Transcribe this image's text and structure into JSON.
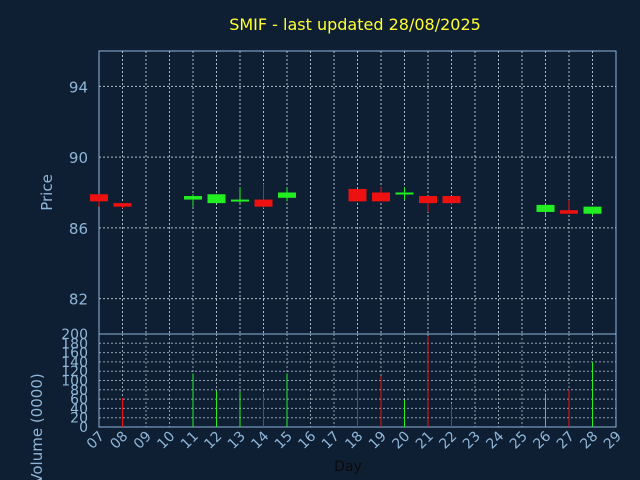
{
  "title": "SMIF - last updated 28/08/2025",
  "colors": {
    "background": "#0f1f33",
    "frame": "#8fb6d8",
    "grid": "#c8d4e0",
    "title": "#ffff33",
    "tick_label": "#8fb6d8",
    "up": "#22ee22",
    "down": "#ee1111"
  },
  "chart_data": [
    {
      "type": "candlestick",
      "ylabel": "Price",
      "ylim": [
        80,
        96
      ],
      "yticks": [
        82,
        86,
        90,
        94
      ],
      "grid": true,
      "candles": [
        {
          "day": "07",
          "open": 87.9,
          "high": 87.9,
          "low": 87.2,
          "close": 87.5
        },
        {
          "day": "08",
          "open": 87.4,
          "high": 87.4,
          "low": 87.1,
          "close": 87.2
        },
        {
          "day": "11",
          "open": 87.6,
          "high": 87.9,
          "low": 87.2,
          "close": 87.8
        },
        {
          "day": "12",
          "open": 87.4,
          "high": 87.9,
          "low": 87.4,
          "close": 87.9
        },
        {
          "day": "13",
          "open": 87.5,
          "high": 88.3,
          "low": 87.4,
          "close": 87.6
        },
        {
          "day": "14",
          "open": 87.6,
          "high": 88.5,
          "low": 87.1,
          "close": 87.2
        },
        {
          "day": "15",
          "open": 87.7,
          "high": 88.3,
          "low": 87.5,
          "close": 88.0
        },
        {
          "day": "18",
          "open": 88.2,
          "high": 88.2,
          "low": 87.5,
          "close": 87.5
        },
        {
          "day": "19",
          "open": 88.0,
          "high": 88.3,
          "low": 87.5,
          "close": 87.5
        },
        {
          "day": "20",
          "open": 87.9,
          "high": 88.3,
          "low": 87.6,
          "close": 88.0
        },
        {
          "day": "21",
          "open": 87.8,
          "high": 87.8,
          "low": 86.9,
          "close": 87.4
        },
        {
          "day": "22",
          "open": 87.8,
          "high": 87.8,
          "low": 87.3,
          "close": 87.4
        },
        {
          "day": "26",
          "open": 86.9,
          "high": 87.3,
          "low": 86.7,
          "close": 87.3
        },
        {
          "day": "27",
          "open": 87.0,
          "high": 87.6,
          "low": 86.8,
          "close": 86.8
        },
        {
          "day": "28",
          "open": 86.8,
          "high": 87.2,
          "low": 86.7,
          "close": 87.2
        }
      ]
    },
    {
      "type": "bar",
      "xlabel": "Day",
      "ylabel": "Volume (0000)",
      "ylim": [
        0,
        200
      ],
      "yticks": [
        0,
        20,
        40,
        60,
        80,
        100,
        120,
        140,
        160,
        180,
        200
      ],
      "categories": [
        "07",
        "08",
        "09",
        "10",
        "11",
        "12",
        "13",
        "14",
        "15",
        "16",
        "17",
        "18",
        "19",
        "20",
        "21",
        "22",
        "23",
        "24",
        "25",
        "26",
        "27",
        "28",
        "29"
      ],
      "grid": true,
      "bars": [
        {
          "day": "08",
          "value": 62,
          "direction": "down"
        },
        {
          "day": "11",
          "value": 115,
          "direction": "up"
        },
        {
          "day": "12",
          "value": 78,
          "direction": "up"
        },
        {
          "day": "13",
          "value": 75,
          "direction": "up"
        },
        {
          "day": "14",
          "value": 72,
          "direction": "down"
        },
        {
          "day": "15",
          "value": 115,
          "direction": "up"
        },
        {
          "day": "18",
          "value": 120,
          "direction": "down"
        },
        {
          "day": "19",
          "value": 110,
          "direction": "down"
        },
        {
          "day": "20",
          "value": 58,
          "direction": "up"
        },
        {
          "day": "21",
          "value": 195,
          "direction": "down"
        },
        {
          "day": "22",
          "value": 48,
          "direction": "down"
        },
        {
          "day": "26",
          "value": 72,
          "direction": "up"
        },
        {
          "day": "27",
          "value": 80,
          "direction": "down"
        },
        {
          "day": "28",
          "value": 140,
          "direction": "up"
        }
      ]
    }
  ]
}
